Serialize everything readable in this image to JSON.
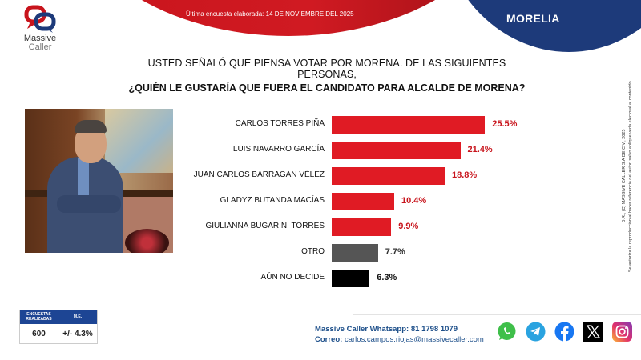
{
  "header": {
    "survey_date": "Última encuesta elaborada: 14 DE NOVIEMBRE DEL 2025",
    "city": "MORELIA",
    "colors": {
      "red": "#c8141c",
      "blue": "#1d3a7a"
    }
  },
  "logo": {
    "line1": "Massive",
    "line2": "Caller"
  },
  "question": {
    "line1": "USTED SEÑALÓ QUE PIENSA VOTAR POR MORENA. DE LAS SIGUIENTES PERSONAS,",
    "line2": "¿QUIÉN LE GUSTARÍA QUE FUERA EL CANDIDATO PARA ALCALDE DE MORENA?"
  },
  "chart_data": {
    "type": "bar",
    "orientation": "horizontal",
    "title": "¿QUIÉN LE GUSTARÍA QUE FUERA EL CANDIDATO PARA ALCALDE DE MORENA?",
    "xlabel": "",
    "ylabel": "",
    "unit": "%",
    "grid": false,
    "legend": "none",
    "categories": [
      "CARLOS TORRES PIÑA",
      "LUIS NAVARRO GARCÍA",
      "JUAN CARLOS BARRAGÁN VÉLEZ",
      "GLADYZ BUTANDA MACÍAS",
      "GIULIANNA BUGARINI TORRES",
      "OTRO",
      "AÚN NO DECIDE"
    ],
    "values": [
      25.5,
      21.4,
      18.8,
      10.4,
      9.9,
      7.7,
      6.3
    ],
    "labels": [
      "25.5%",
      "21.4%",
      "18.8%",
      "10.4%",
      "9.9%",
      "7.7%",
      "6.3%"
    ],
    "bar_colors": [
      "#e01b24",
      "#e01b24",
      "#e01b24",
      "#e01b24",
      "#e01b24",
      "#555555",
      "#000000"
    ],
    "label_colors": [
      "#c8141c",
      "#c8141c",
      "#c8141c",
      "#c8141c",
      "#c8141c",
      "#333333",
      "#111111"
    ]
  },
  "stats": {
    "header_surveys": "ENCUESTAS REALIZADAS",
    "header_me": "M.E.",
    "surveys": "600",
    "margin_error": "+/- 4.3%"
  },
  "contact": {
    "whatsapp_label": "Massive Caller Whatsapp:",
    "whatsapp_number": "81 1798 1079",
    "email_label": "Correo:",
    "email": "carlos.campos.riojas@massivecaller.com"
  },
  "social_icons": [
    "whatsapp-icon",
    "telegram-icon",
    "facebook-icon",
    "x-icon",
    "instagram-icon"
  ],
  "copyright": {
    "line1": "D.R., (C) MASSIVE CALLER S.A DE C.V., 2025",
    "line2": "Se autoriza la reproducción al hacer referencia del autor, salvo aplique veda electoral al contenido."
  }
}
